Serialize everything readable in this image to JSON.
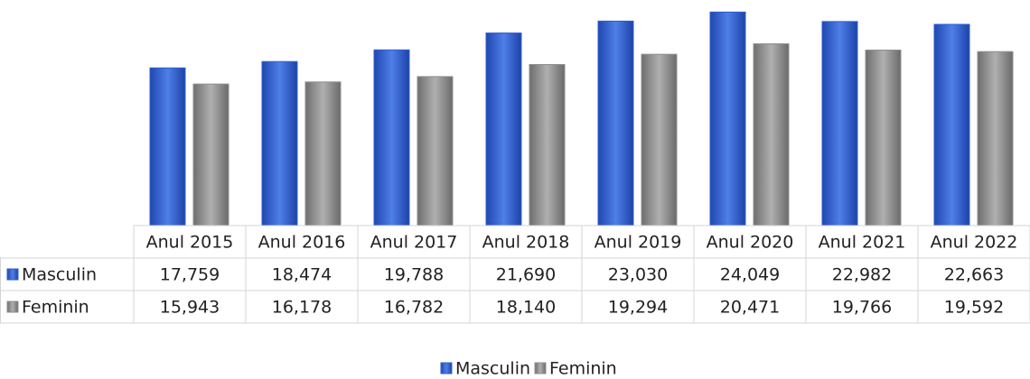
{
  "chart_data": {
    "type": "bar",
    "categories": [
      "Anul 2015",
      "Anul 2016",
      "Anul 2017",
      "Anul 2018",
      "Anul 2019",
      "Anul 2020",
      "Anul 2021",
      "Anul 2022"
    ],
    "series": [
      {
        "name": "Masculin",
        "color": "#2f5fd0",
        "values": [
          17759,
          18474,
          19788,
          21690,
          23030,
          24049,
          22982,
          22663
        ],
        "value_labels": [
          "17,759",
          "18,474",
          "19,788",
          "21,690",
          "23,030",
          "24,049",
          "22,982",
          "22,663"
        ]
      },
      {
        "name": "Feminin",
        "color": "#8f8f8f",
        "values": [
          15943,
          16178,
          16782,
          18140,
          19294,
          20471,
          19766,
          19592
        ],
        "value_labels": [
          "15,943",
          "16,178",
          "16,782",
          "18,140",
          "19,294",
          "20,471",
          "19,766",
          "19,592"
        ]
      }
    ],
    "ylim": [
      0,
      25000
    ],
    "legend": "bottom"
  }
}
